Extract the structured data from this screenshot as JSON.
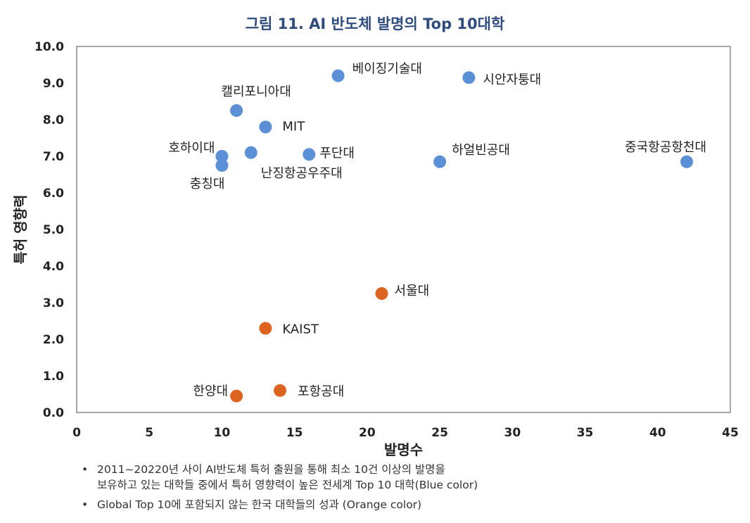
{
  "chart_data": {
    "type": "scatter",
    "title": "그림 11. AI 반도체 발명의 Top 10대학",
    "xlabel": "발명수",
    "ylabel": "특허 영향력",
    "xlim": [
      0,
      45
    ],
    "ylim": [
      0,
      10
    ],
    "x_ticks": [
      "0",
      "5",
      "10",
      "15",
      "20",
      "25",
      "30",
      "35",
      "40",
      "45"
    ],
    "y_ticks": [
      "0.0",
      "1.0",
      "2.0",
      "3.0",
      "4.0",
      "5.0",
      "6.0",
      "7.0",
      "8.0",
      "9.0",
      "10.0"
    ],
    "grid": false,
    "colors": {
      "blue": "#5b8fd6",
      "orange": "#dd6420"
    },
    "series": [
      {
        "color": "#5b8fd6",
        "points": [
          {
            "label": "베이징기술대",
            "x": 18,
            "y": 9.2
          },
          {
            "label": "시안자퉁대",
            "x": 27,
            "y": 9.15
          },
          {
            "label": "캘리포니아대",
            "x": 11,
            "y": 8.25
          },
          {
            "label": "MIT",
            "x": 13,
            "y": 7.8
          },
          {
            "label": "호하이대",
            "x": 10,
            "y": 7.0
          },
          {
            "label": "충칭대",
            "x": 10,
            "y": 6.75
          },
          {
            "label": "난징항공우주대",
            "x": 12,
            "y": 7.1
          },
          {
            "label": "푸단대",
            "x": 16,
            "y": 7.05
          },
          {
            "label": "하얼빈공대",
            "x": 25,
            "y": 6.85
          },
          {
            "label": "중국항공항천대",
            "x": 42,
            "y": 6.85
          }
        ]
      },
      {
        "color": "#dd6420",
        "points": [
          {
            "label": "서울대",
            "x": 21,
            "y": 3.25
          },
          {
            "label": "KAIST",
            "x": 13,
            "y": 2.3
          },
          {
            "label": "한양대",
            "x": 11,
            "y": 0.45
          },
          {
            "label": "포항공대",
            "x": 14,
            "y": 0.6
          }
        ]
      }
    ]
  },
  "notes": [
    {
      "bullet": "•",
      "lines": [
        "2011~20220년 사이 AI반도체 특허 출원을 통해 최소 10건 이상의 발명을",
        "보유하고 있는 대학들 중에서 특허 영향력이 높은 전세계 Top 10 대학(Blue color)"
      ]
    },
    {
      "bullet": "•",
      "lines": [
        "Global Top 10에 포함되지 않는 한국 대학들의 성과 (Orange color)"
      ]
    }
  ]
}
